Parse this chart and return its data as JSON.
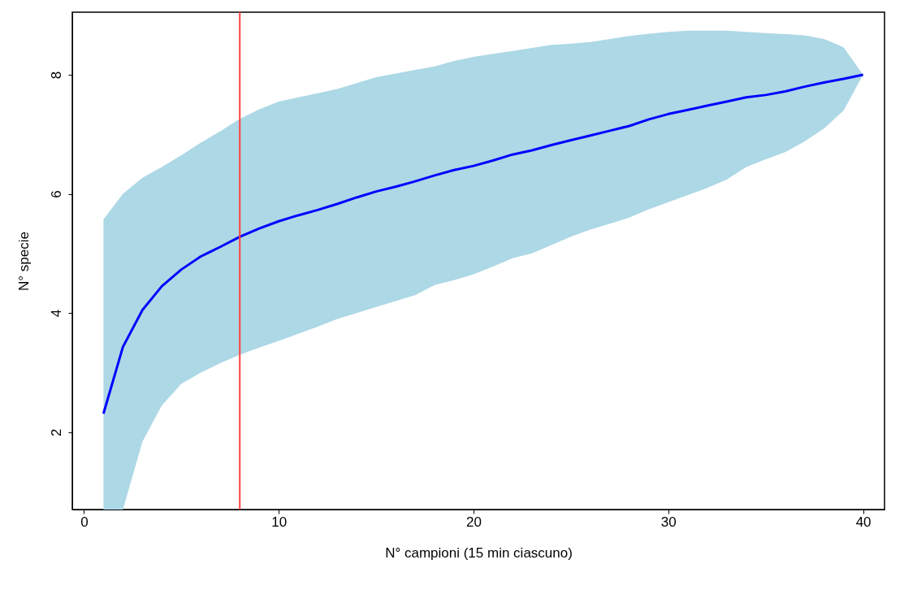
{
  "chart_data": {
    "type": "line",
    "xlabel": "N° campioni (15 min ciascuno)",
    "ylabel": "N° specie",
    "x": [
      1,
      2,
      3,
      4,
      5,
      6,
      7,
      8,
      9,
      10,
      11,
      12,
      13,
      14,
      15,
      16,
      17,
      18,
      19,
      20,
      21,
      22,
      23,
      24,
      25,
      26,
      27,
      28,
      29,
      30,
      31,
      32,
      33,
      34,
      35,
      36,
      37,
      38,
      39,
      40
    ],
    "series": [
      {
        "color": "#0000ff",
        "values": [
          2.31,
          3.43,
          4.05,
          4.45,
          4.73,
          4.95,
          5.11,
          5.28,
          5.42,
          5.54,
          5.64,
          5.73,
          5.83,
          5.94,
          6.04,
          6.12,
          6.21,
          6.31,
          6.4,
          6.47,
          6.56,
          6.66,
          6.73,
          6.82,
          6.9,
          6.98,
          7.06,
          7.14,
          7.25,
          7.34,
          7.41,
          7.48,
          7.55,
          7.62,
          7.66,
          7.72,
          7.8,
          7.87,
          7.93,
          8.0
        ],
        "upper": [
          5.57,
          6.0,
          6.27,
          6.45,
          6.65,
          6.86,
          7.05,
          7.26,
          7.42,
          7.55,
          7.62,
          7.69,
          7.76,
          7.86,
          7.96,
          8.02,
          8.08,
          8.14,
          8.23,
          8.3,
          8.35,
          8.4,
          8.45,
          8.5,
          8.52,
          8.55,
          8.6,
          8.65,
          8.69,
          8.72,
          8.74,
          8.74,
          8.74,
          8.72,
          8.7,
          8.68,
          8.66,
          8.6,
          8.46,
          8.0
        ],
        "lower": [
          0.7,
          0.7,
          1.84,
          2.45,
          2.81,
          3.0,
          3.16,
          3.3,
          3.42,
          3.53,
          3.65,
          3.77,
          3.9,
          4.0,
          4.1,
          4.2,
          4.3,
          4.47,
          4.55,
          4.65,
          4.78,
          4.92,
          5.0,
          5.14,
          5.28,
          5.4,
          5.5,
          5.6,
          5.74,
          5.86,
          5.98,
          6.1,
          6.24,
          6.45,
          6.58,
          6.7,
          6.88,
          7.1,
          7.4,
          8.0
        ]
      }
    ],
    "ref_lines": [
      {
        "axis": "x",
        "value": 8,
        "color": "#ff4040"
      }
    ],
    "xlim": [
      -0.6,
      41.1
    ],
    "ylim": [
      0.7,
      9.05
    ],
    "xticks": [
      0,
      10,
      20,
      30,
      40
    ],
    "yticks": [
      2,
      4,
      6,
      8
    ],
    "grid": false,
    "marker": "none",
    "line_style": "solid"
  }
}
